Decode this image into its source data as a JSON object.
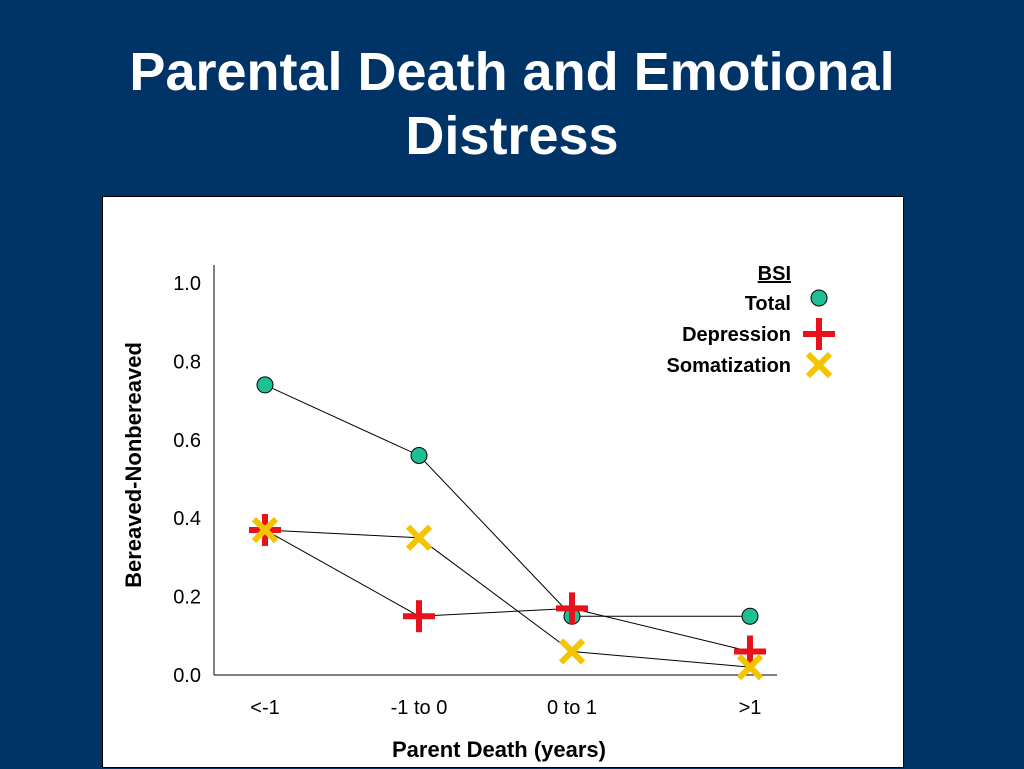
{
  "slide": {
    "title_line1": "Parental Death and Emotional",
    "title_line2": "Distress"
  },
  "chart_data": {
    "type": "scatter",
    "categories": [
      "<-1",
      "-1 to 0",
      "0 to 1",
      ">1"
    ],
    "xlabel": "Parent Death (years)",
    "ylabel": "Bereaved-Nonbereaved",
    "ylim": [
      0.0,
      1.0
    ],
    "yticks": [
      "1.0",
      "0.8",
      "0.6",
      "0.4",
      "0.2",
      "0.0"
    ],
    "ytick_values": [
      1.0,
      0.8,
      0.6,
      0.4,
      0.2,
      0.0
    ],
    "legend_title": "BSI",
    "legend_position": "top-right",
    "grid": false,
    "series": [
      {
        "name": "Total",
        "marker": "circle",
        "color": "#1fbf95",
        "values": [
          0.74,
          0.56,
          0.15,
          0.15
        ]
      },
      {
        "name": "Depression",
        "marker": "plus",
        "color": "#e8121c",
        "values": [
          0.37,
          0.15,
          0.17,
          0.06
        ]
      },
      {
        "name": "Somatization",
        "marker": "x",
        "color": "#f5c400",
        "values": [
          0.37,
          0.35,
          0.06,
          0.02
        ]
      }
    ],
    "x_positions": [
      0.1,
      0.35,
      0.6,
      0.85
    ]
  }
}
